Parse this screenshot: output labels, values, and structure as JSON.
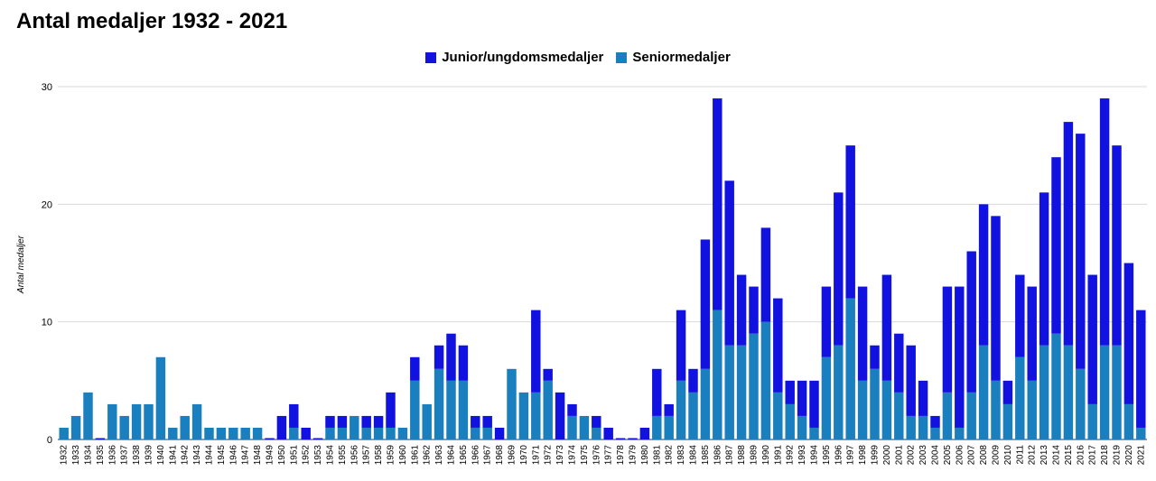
{
  "chart_data": {
    "type": "bar",
    "stacked": true,
    "title": "Antal medaljer 1932 - 2021",
    "xlabel": "",
    "ylabel": "Antal medaljer",
    "ylim": [
      0,
      30
    ],
    "yticks": [
      "0",
      "10",
      "20",
      "30"
    ],
    "grid": true,
    "legend_position": "top",
    "categories": [
      "1932",
      "1933",
      "1934",
      "1935",
      "1936",
      "1937",
      "1938",
      "1939",
      "1940",
      "1941",
      "1942",
      "1943",
      "1944",
      "1945",
      "1946",
      "1947",
      "1948",
      "1949",
      "1950",
      "1951",
      "1952",
      "1953",
      "1954",
      "1955",
      "1956",
      "1957",
      "1958",
      "1959",
      "1960",
      "1961",
      "1962",
      "1963",
      "1964",
      "1965",
      "1966",
      "1967",
      "1968",
      "1969",
      "1970",
      "1971",
      "1972",
      "1973",
      "1974",
      "1975",
      "1976",
      "1977",
      "1978",
      "1979",
      "1980",
      "1981",
      "1982",
      "1983",
      "1984",
      "1985",
      "1986",
      "1987",
      "1988",
      "1989",
      "1990",
      "1991",
      "1992",
      "1993",
      "1994",
      "1995",
      "1996",
      "1997",
      "1998",
      "1999",
      "2000",
      "2001",
      "2002",
      "2003",
      "2004",
      "2005",
      "2006",
      "2007",
      "2008",
      "2009",
      "2010",
      "2011",
      "2012",
      "2013",
      "2014",
      "2015",
      "2016",
      "2017",
      "2018",
      "2019",
      "2020",
      "2021"
    ],
    "series": [
      {
        "name": "Seniormedaljer",
        "color": "#1a7fbf",
        "values": [
          1,
          2,
          4,
          0,
          3,
          2,
          3,
          3,
          7,
          1,
          2,
          3,
          1,
          1,
          1,
          1,
          1,
          0,
          0,
          1,
          0,
          0,
          1,
          1,
          2,
          1,
          1,
          1,
          1,
          5,
          3,
          6,
          5,
          5,
          1,
          1,
          0,
          6,
          4,
          4,
          5,
          0,
          2,
          2,
          1,
          0,
          0,
          0,
          0,
          2,
          2,
          5,
          4,
          6,
          11,
          8,
          8,
          9,
          10,
          4,
          3,
          2,
          1,
          7,
          8,
          12,
          5,
          6,
          5,
          4,
          2,
          2,
          1,
          4,
          1,
          4,
          8,
          5,
          3,
          7,
          5,
          8,
          9,
          8,
          6,
          3,
          8,
          8,
          3,
          1
        ]
      },
      {
        "name": "Junior/ungdomsmedaljer",
        "color": "#1212e0",
        "values": [
          0,
          0,
          0,
          0,
          0,
          0,
          0,
          0,
          0,
          0,
          0,
          0,
          0,
          0,
          0,
          0,
          0,
          0,
          2,
          2,
          1,
          0,
          1,
          1,
          0,
          1,
          1,
          3,
          0,
          2,
          0,
          2,
          4,
          3,
          1,
          1,
          1,
          0,
          0,
          7,
          1,
          4,
          1,
          0,
          1,
          1,
          0,
          0,
          1,
          4,
          1,
          6,
          2,
          11,
          18,
          14,
          6,
          4,
          8,
          8,
          2,
          3,
          4,
          6,
          13,
          13,
          8,
          2,
          9,
          5,
          6,
          3,
          1,
          9,
          12,
          12,
          12,
          14,
          2,
          7,
          8,
          13,
          15,
          19,
          20,
          11,
          21,
          17,
          12,
          10
        ]
      }
    ]
  }
}
